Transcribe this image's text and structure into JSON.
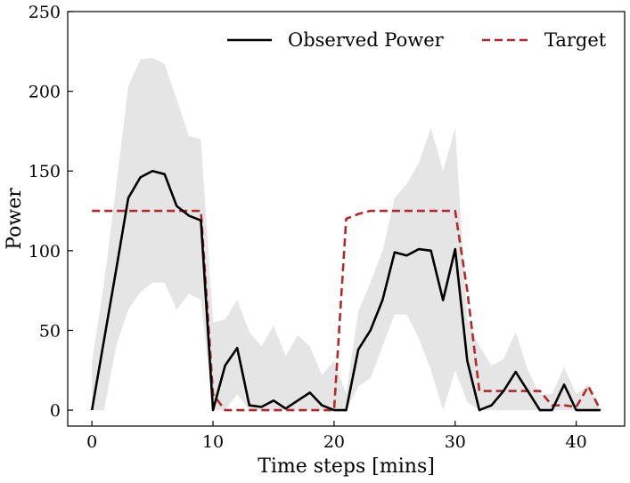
{
  "chart_data": {
    "type": "line",
    "title": "",
    "xlabel": "Time steps [mins]",
    "ylabel": "Power",
    "xlim": [
      -2,
      44
    ],
    "ylim": [
      -10,
      250
    ],
    "xticks": [
      0,
      10,
      20,
      30,
      40
    ],
    "yticks": [
      0,
      50,
      100,
      150,
      200,
      250
    ],
    "legend_position": "top-right",
    "grid": false,
    "x": [
      0,
      1,
      2,
      3,
      4,
      5,
      6,
      7,
      8,
      9,
      10,
      11,
      12,
      13,
      14,
      15,
      16,
      17,
      18,
      19,
      20,
      21,
      22,
      23,
      24,
      25,
      26,
      27,
      28,
      29,
      30,
      31,
      32,
      33,
      34,
      35,
      36,
      37,
      38,
      39,
      40,
      41,
      42
    ],
    "band": {
      "color": "#e5e5e5",
      "upper": [
        30,
        80,
        140,
        203,
        220,
        221,
        217,
        195,
        172,
        170,
        55,
        57,
        69,
        49,
        40,
        53,
        34,
        47,
        40,
        22,
        31,
        10,
        62,
        80,
        100,
        133,
        142,
        155,
        177,
        150,
        177,
        57,
        40,
        28,
        32,
        49,
        25,
        10,
        10,
        27,
        10,
        16,
        0
      ],
      "lower": [
        0,
        0,
        40,
        63,
        74,
        80,
        80,
        63,
        73,
        69,
        0,
        0,
        10,
        0,
        0,
        0,
        0,
        0,
        0,
        0,
        0,
        0,
        15,
        20,
        40,
        60,
        60,
        45,
        25,
        0,
        25,
        5,
        0,
        0,
        0,
        0,
        0,
        0,
        0,
        0,
        0,
        0,
        0
      ]
    },
    "series": [
      {
        "name": "Observed Power",
        "color": "#000000",
        "dash": "solid",
        "values": [
          0,
          44,
          88,
          133,
          146,
          150,
          148,
          128,
          122,
          119,
          0,
          28,
          39,
          3,
          2,
          6,
          1,
          6,
          11,
          3,
          0,
          0,
          38,
          50,
          69,
          99,
          97,
          101,
          100,
          69,
          101,
          31,
          0,
          3,
          12,
          24,
          12,
          0,
          0,
          16,
          0,
          0,
          0
        ]
      },
      {
        "name": "Target",
        "color": "#b02a2a",
        "dash": "dashed",
        "values": [
          125,
          125,
          125,
          125,
          125,
          125,
          125,
          125,
          125,
          125,
          10,
          0,
          0,
          0,
          0,
          0,
          0,
          0,
          0,
          0,
          0,
          120,
          123,
          125,
          125,
          125,
          125,
          125,
          125,
          125,
          125,
          75,
          12,
          12,
          12,
          12,
          12,
          12,
          3,
          3,
          2,
          15,
          0
        ]
      }
    ]
  }
}
